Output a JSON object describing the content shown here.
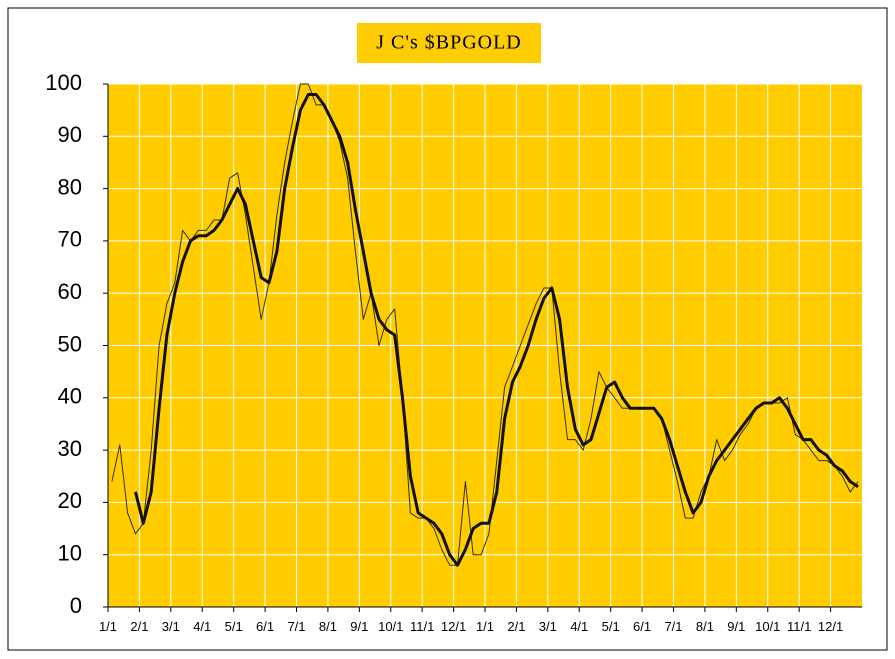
{
  "chart_data": {
    "type": "line",
    "title": "J C's $BPGOLD",
    "categories": [
      "1/1",
      null,
      null,
      null,
      "2/1",
      null,
      null,
      null,
      "3/1",
      null,
      null,
      null,
      "4/1",
      null,
      null,
      null,
      "5/1",
      null,
      null,
      null,
      "6/1",
      null,
      null,
      null,
      "7/1",
      null,
      null,
      null,
      "8/1",
      null,
      null,
      null,
      "9/1",
      null,
      null,
      null,
      "10/1",
      null,
      null,
      null,
      "11/1",
      null,
      null,
      null,
      "12/1",
      null,
      null,
      null,
      "1/1",
      null,
      null,
      null,
      "2/1",
      null,
      null,
      null,
      "3/1",
      null,
      null,
      null,
      "4/1",
      null,
      null,
      null,
      "5/1",
      null,
      null,
      null,
      "6/1",
      null,
      null,
      null,
      "7/1",
      null,
      null,
      null,
      "8/1",
      null,
      null,
      null,
      "9/1",
      null,
      null,
      null,
      "10/1",
      null,
      null,
      null,
      "11/1",
      null,
      null,
      null,
      "12/1",
      null,
      null,
      null
    ],
    "series": [
      {
        "color": "#333300",
        "width": 1,
        "values": [
          24,
          31,
          18,
          14,
          16,
          30,
          50,
          58,
          62,
          72,
          70,
          72,
          72,
          74,
          74,
          82,
          83,
          75,
          65,
          55,
          62,
          75,
          85,
          93,
          100,
          100,
          96,
          96,
          93,
          89,
          82,
          68,
          55,
          60,
          50,
          55,
          57,
          40,
          18,
          17,
          17,
          15,
          11,
          8,
          8,
          24,
          10,
          10,
          14,
          28,
          42,
          46,
          50,
          54,
          58,
          61,
          61,
          45,
          32,
          32,
          30,
          36,
          45,
          42,
          40,
          38,
          38,
          38,
          38,
          38,
          36,
          30,
          24,
          17,
          17,
          22,
          25,
          32,
          28,
          30,
          33,
          35,
          38,
          39,
          39,
          39,
          40,
          33,
          32,
          30,
          28,
          28,
          27,
          25,
          22,
          24
        ]
      },
      {
        "color": "#111111",
        "width": 3,
        "values": [
          null,
          null,
          null,
          22,
          16,
          22,
          38,
          52,
          60,
          66,
          70,
          71,
          71,
          72,
          74,
          77,
          80,
          77,
          70,
          63,
          62,
          68,
          80,
          88,
          95,
          98,
          98,
          96,
          93,
          90,
          85,
          76,
          68,
          60,
          55,
          53,
          52,
          40,
          25,
          18,
          17,
          16,
          14,
          10,
          8,
          11,
          15,
          16,
          16,
          22,
          36,
          43,
          46,
          50,
          55,
          59,
          61,
          55,
          42,
          34,
          31,
          32,
          37,
          42,
          43,
          40,
          38,
          38,
          38,
          38,
          36,
          32,
          27,
          22,
          18,
          20,
          25,
          28,
          30,
          32,
          34,
          36,
          38,
          39,
          39,
          40,
          38,
          35,
          32,
          32,
          30,
          29,
          27,
          26,
          24,
          23
        ]
      }
    ],
    "ylim": [
      0,
      100
    ],
    "yticks": [
      0,
      10,
      20,
      30,
      40,
      50,
      60,
      70,
      80,
      90,
      100
    ],
    "grid": true,
    "plot_color": "#ffcc00"
  }
}
